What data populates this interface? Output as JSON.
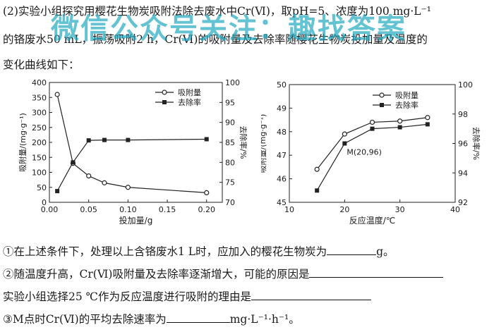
{
  "text": {
    "line1": "(2)实验小组探究用樱花生物炭吸附法除去废水中Cr(Ⅵ)，取pH=5、浓度为100 mg·L⁻¹",
    "line2": "的铬废水50 mL，振荡吸附2 h，Cr(Ⅵ)的吸附量及去除率随樱花生物炭投加量及温度的",
    "line3": "变化曲线如下：",
    "q1_pre": "①在上述条件下，处理以上含铬废水1 L时，应加入的樱花生物炭为",
    "q1_post": "g。",
    "q2": "②随温度升高，Cr(Ⅵ)吸附量及去除率逐渐增大，可能的原因是",
    "q2b": "实验小组选择25 ℃作为反应温度进行吸附的理由是",
    "q3_pre": "③M点时Cr(Ⅵ)的平均去除速率为",
    "q3_post": "mg·L⁻¹·h⁻¹。"
  },
  "watermark": "微信公众号关注：趣找答案",
  "chart_data": [
    {
      "type": "line",
      "xlabel": "投加量/g",
      "ylabel_left": "吸附量/(mg·g⁻¹)",
      "ylabel_right": "去除率/%",
      "xticks": [
        "0.00",
        "0.05",
        "0.10",
        "0.15",
        "0.20"
      ],
      "yticks_left": [
        "0",
        "50",
        "100",
        "150",
        "200",
        "250",
        "300",
        "350",
        "400"
      ],
      "yticks_right": [
        "70",
        "75",
        "80",
        "85",
        "90",
        "95",
        "100"
      ],
      "xlim": [
        0,
        0.22
      ],
      "ylim_left": [
        0,
        400
      ],
      "ylim_right": [
        70,
        100
      ],
      "legend": "top-right",
      "series": [
        {
          "name": "吸附量",
          "axis": "left",
          "marker": "open-circle",
          "x": [
            0.01,
            0.03,
            0.05,
            0.07,
            0.1,
            0.2
          ],
          "values": [
            360,
            130,
            88,
            65,
            50,
            32
          ]
        },
        {
          "name": "去除率",
          "axis": "right",
          "marker": "filled-square",
          "x": [
            0.01,
            0.03,
            0.05,
            0.07,
            0.1,
            0.2
          ],
          "values": [
            72.8,
            80.0,
            85.5,
            85.6,
            85.6,
            85.8
          ]
        }
      ]
    },
    {
      "type": "line",
      "xlabel": "反应温度/℃",
      "ylabel_left": "吸附量/(mg·g⁻¹)",
      "ylabel_right": "去除率/%",
      "xticks": [
        "10",
        "20",
        "30",
        "40"
      ],
      "yticks_left": [
        "45",
        "46",
        "47",
        "48",
        "49",
        "50"
      ],
      "yticks_right": [
        "92",
        "94",
        "96",
        "98",
        "100"
      ],
      "xlim": [
        10,
        40
      ],
      "ylim_left": [
        45,
        50
      ],
      "ylim_right": [
        92,
        100
      ],
      "legend": "top-left",
      "annotation": {
        "text": "M(20,96)",
        "x": 20,
        "y": 96
      },
      "series": [
        {
          "name": "吸附量",
          "axis": "left",
          "marker": "open-circle",
          "x": [
            15,
            20,
            25,
            30,
            35
          ],
          "values": [
            46.4,
            47.9,
            48.4,
            48.45,
            48.6
          ]
        },
        {
          "name": "去除率",
          "axis": "right",
          "marker": "filled-square",
          "x": [
            15,
            20,
            25,
            30,
            35
          ],
          "values": [
            92.8,
            96.0,
            97.0,
            97.1,
            97.3
          ]
        }
      ]
    }
  ]
}
